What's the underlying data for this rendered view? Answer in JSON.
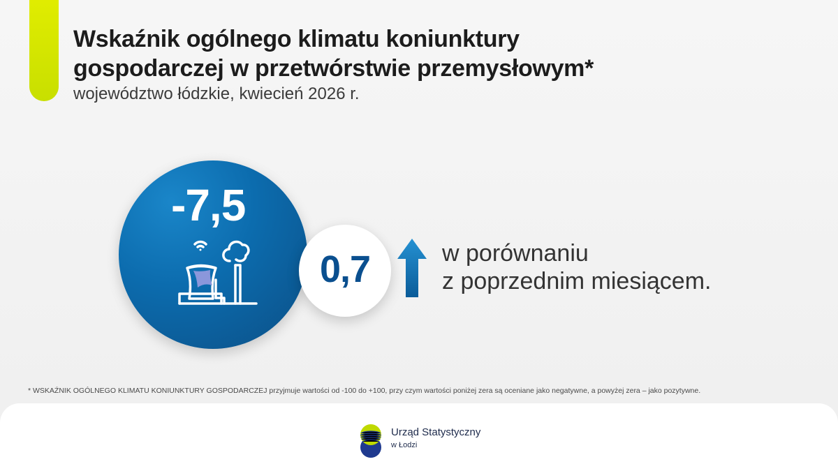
{
  "header": {
    "title": "Wskaźnik ogólnego klimatu koniunktury gospodarczej w przetwórstwie przemysłowym*",
    "subtitle": "województwo łódzkie, kwiecień 2026 r."
  },
  "indicator": {
    "value": "-7,5",
    "change": "0,7",
    "comparison_line_1": "w porównaniu",
    "comparison_line_2": "z poprzednim miesiącem."
  },
  "footnote": {
    "text": "* WSKAŹNIK OGÓLNEGO KLIMATU KONIUNKTURY GOSPODARCZEJ przyjmuje wartości od -100 do +100, przy czym wartości poniżej zera są oceniane jako negatywne, a powyżej zera – jako pozytywne."
  },
  "logo": {
    "line_1": "Urząd Statystyczny",
    "line_2": "w Łodzi"
  },
  "icons": {
    "main": "factory-icon",
    "direction": "up-arrow-icon",
    "brand": "logo-mark-icon"
  },
  "colors": {
    "accent": "#d9ea00",
    "primary_blue": "#0c6cae",
    "dark_blue": "#0a4f8f",
    "text": "#1c1c1c",
    "background": "#f2f2f2",
    "white": "#ffffff"
  }
}
